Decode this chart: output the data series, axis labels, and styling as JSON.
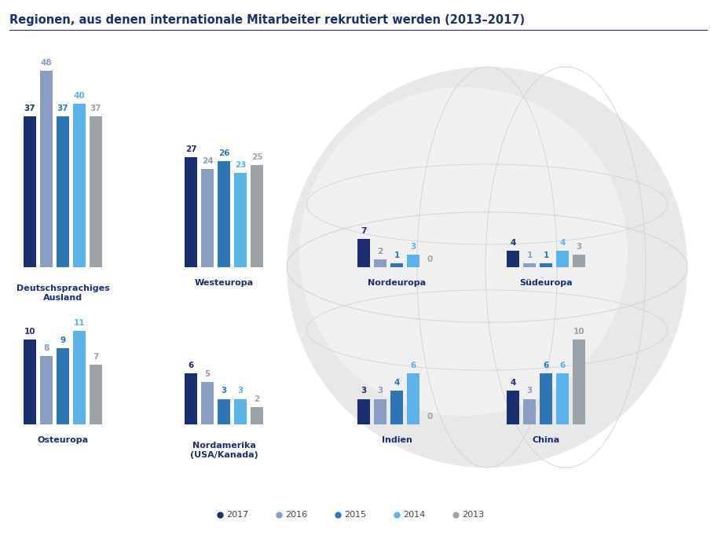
{
  "title": "Regionen, aus denen internationale Mitarbeiter rekrutiert werden (2013–2017)",
  "background_color": "#ffffff",
  "globe_color": "#e8e8e8",
  "colors": {
    "2017": "#1b2f6e",
    "2016": "#8b9dc3",
    "2015": "#2e75b6",
    "2014": "#5cb3e8",
    "2013": "#9ca3a8"
  },
  "legend_labels": [
    "2017",
    "2016",
    "2015",
    "2014",
    "2013"
  ],
  "groups": [
    {
      "label": "Deutschsprachiges\nAusland",
      "values": [
        37,
        48,
        37,
        40,
        37
      ],
      "col": 0,
      "row": 0
    },
    {
      "label": "Westeuropa",
      "values": [
        27,
        24,
        26,
        23,
        25
      ],
      "col": 1,
      "row": 0
    },
    {
      "label": "Nordeuropa",
      "values": [
        7,
        2,
        1,
        3,
        0
      ],
      "col": 2,
      "row": 0
    },
    {
      "label": "Südeuropa",
      "values": [
        4,
        1,
        1,
        4,
        3
      ],
      "col": 3,
      "row": 0
    },
    {
      "label": "Osteuropa",
      "values": [
        10,
        8,
        9,
        11,
        7
      ],
      "col": 0,
      "row": 1
    },
    {
      "label": "Nordamerika\n(USA/Kanada)",
      "values": [
        6,
        5,
        3,
        3,
        2
      ],
      "col": 1,
      "row": 1
    },
    {
      "label": "Indien",
      "values": [
        3,
        3,
        4,
        6,
        0
      ],
      "col": 2,
      "row": 1
    },
    {
      "label": "China",
      "values": [
        4,
        3,
        6,
        6,
        10
      ],
      "col": 3,
      "row": 1
    }
  ],
  "title_fontsize": 10.5,
  "label_fontsize": 8,
  "value_fontsize": 7.5,
  "legend_fontsize": 8
}
